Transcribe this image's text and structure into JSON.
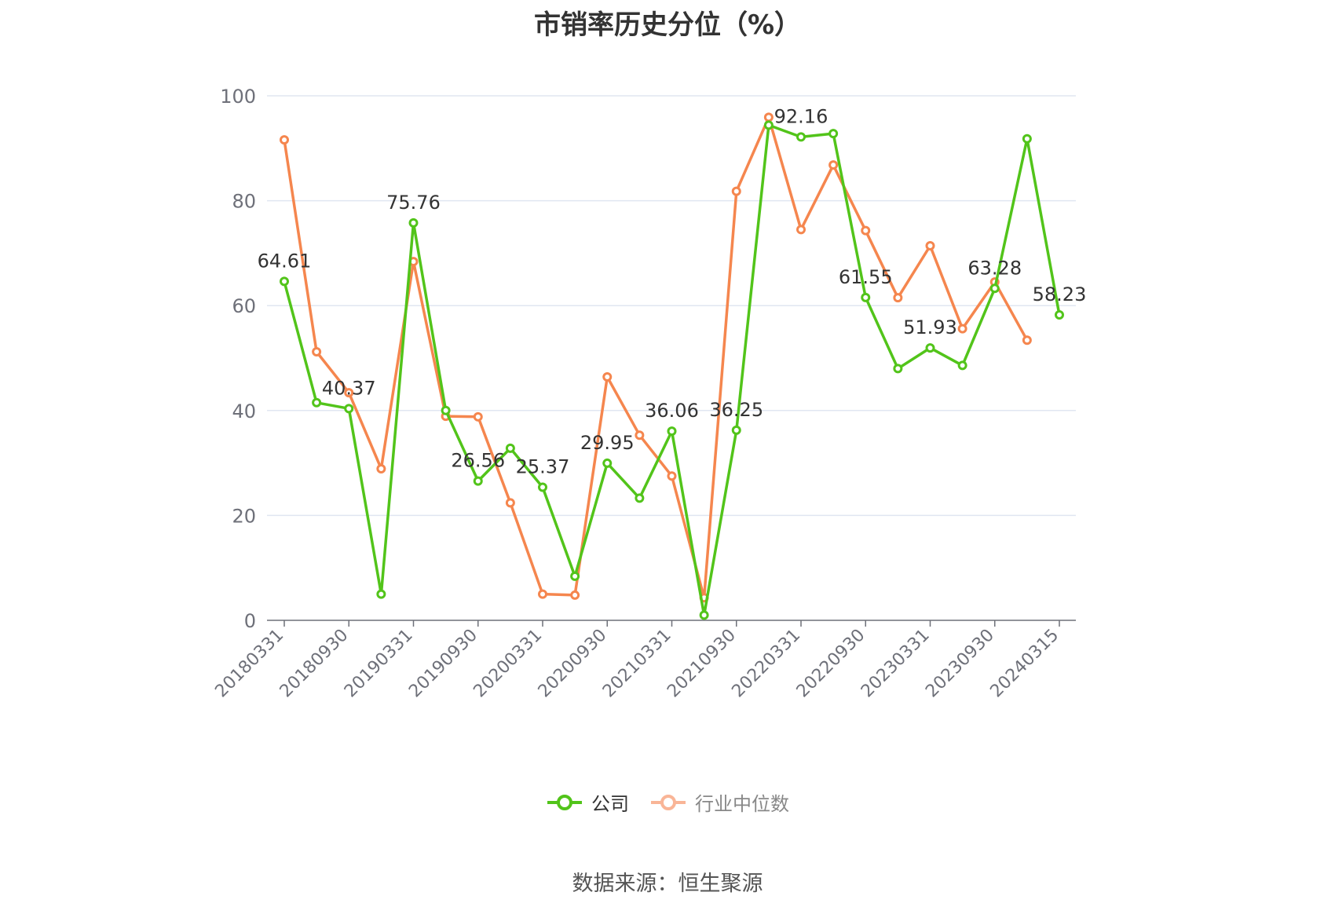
{
  "chart_data": {
    "type": "line",
    "title": "市销率历史分位（%）",
    "ylim": [
      0,
      100
    ],
    "yticks": [
      0,
      20,
      40,
      60,
      80,
      100
    ],
    "grid": true,
    "legend_position": "bottom",
    "x": [
      "20180331",
      "20180630",
      "20180930",
      "20181231",
      "20190331",
      "20190630",
      "20190930",
      "20191231",
      "20200331",
      "20200630",
      "20200930",
      "20201231",
      "20210331",
      "20210630",
      "20210930",
      "20211231",
      "20220331",
      "20220630",
      "20220930",
      "20221231",
      "20230331",
      "20230630",
      "20230930",
      "20231231",
      "20240315"
    ],
    "xtick_labels": [
      "20180331",
      "20180930",
      "20190331",
      "20190930",
      "20200331",
      "20200930",
      "20210331",
      "20210930",
      "20220331",
      "20220930",
      "20230331",
      "20230930",
      "20240315"
    ],
    "series": [
      {
        "name": "公司",
        "color": "#52c41a",
        "values": [
          64.61,
          41.5,
          40.37,
          5.0,
          75.76,
          40.0,
          26.56,
          32.8,
          25.37,
          8.4,
          29.95,
          23.3,
          36.06,
          1.0,
          36.25,
          94.4,
          92.16,
          92.8,
          61.55,
          48.0,
          51.93,
          48.6,
          63.28,
          91.8,
          58.23
        ],
        "labels": [
          "64.61",
          null,
          "40.37",
          null,
          "75.76",
          null,
          "26.56",
          null,
          "25.37",
          null,
          "29.95",
          null,
          "36.06",
          null,
          "36.25",
          null,
          "92.16",
          null,
          "61.55",
          null,
          "51.93",
          null,
          "63.28",
          null,
          "58.23"
        ]
      },
      {
        "name": "行业中位数",
        "color": "#f5864e",
        "values": [
          91.6,
          51.2,
          43.4,
          28.9,
          68.4,
          38.9,
          38.8,
          22.4,
          5.0,
          4.8,
          46.4,
          35.3,
          27.5,
          4.3,
          81.8,
          95.9,
          74.5,
          86.8,
          74.3,
          61.5,
          71.4,
          55.6,
          64.5,
          53.4,
          null
        ]
      }
    ]
  },
  "source_note": "数据来源：恒生聚源"
}
